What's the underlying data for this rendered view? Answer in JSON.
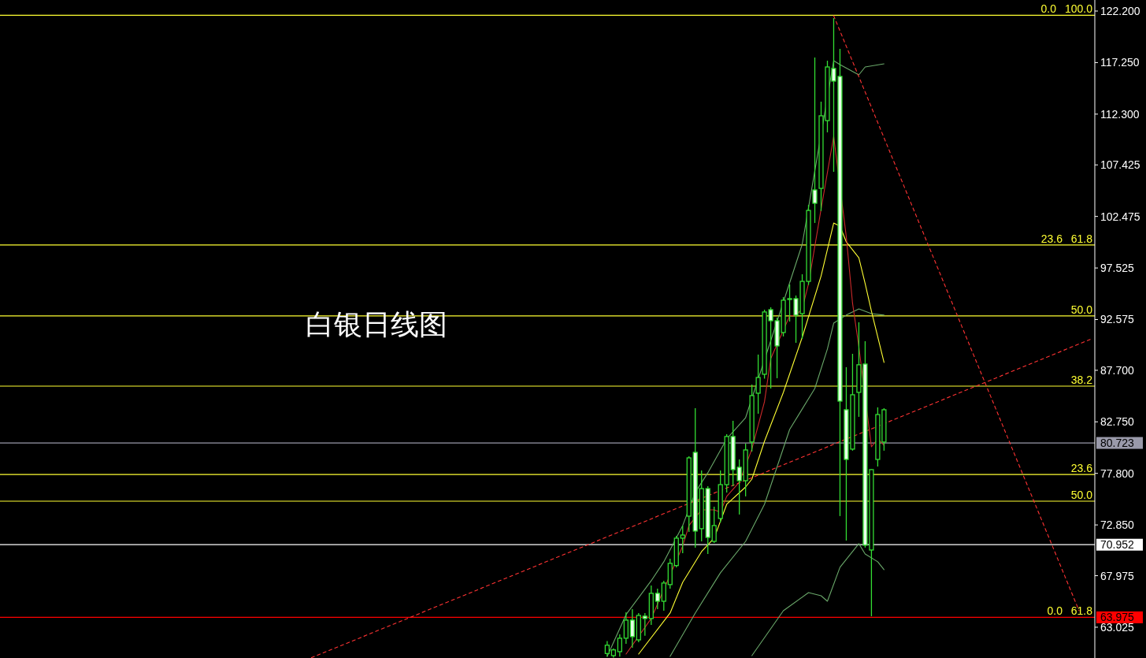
{
  "chart_data": {
    "type": "candlestick",
    "title": "白银日线图",
    "categories": [
      null,
      null,
      null,
      null,
      null,
      null,
      null,
      null,
      null,
      null,
      null,
      null,
      null,
      null,
      null,
      null,
      null,
      null,
      null,
      null,
      null,
      null,
      null,
      null,
      null,
      null,
      null,
      null,
      null,
      null,
      null,
      null,
      null,
      null,
      null,
      null,
      null,
      null,
      null,
      null,
      null,
      null,
      null,
      null,
      null,
      null,
      null,
      null,
      null,
      null,
      null,
      null,
      null,
      null,
      null,
      null,
      null,
      null,
      null,
      null,
      null,
      null,
      null,
      null,
      null,
      null,
      null,
      null,
      null,
      null,
      null,
      null,
      null,
      null,
      null,
      null,
      null,
      null,
      null,
      null,
      null,
      null,
      null,
      null,
      null,
      null,
      null,
      null,
      null,
      null,
      null,
      null,
      null,
      null,
      null,
      null,
      null,
      null,
      null,
      null,
      null,
      null,
      null,
      null,
      null,
      null,
      null,
      null,
      null,
      null,
      null,
      null,
      null,
      null,
      null,
      null,
      null,
      null,
      null,
      null,
      null,
      null,
      null,
      null,
      null,
      null,
      null,
      null,
      null,
      null,
      null,
      null,
      null,
      null,
      null,
      null,
      null,
      null,
      null,
      null,
      null,
      null,
      null,
      null,
      null,
      null,
      null,
      null,
      null,
      null,
      null,
      null,
      null,
      null,
      null,
      null,
      null,
      null,
      null,
      null,
      null,
      null,
      null,
      null,
      null,
      null,
      null,
      null,
      null,
      null,
      null,
      null,
      null,
      null
    ],
    "ohlc": [
      null,
      null,
      null,
      null,
      null,
      null,
      null,
      null,
      null,
      null,
      null,
      null,
      null,
      null,
      null,
      null,
      null,
      null,
      null,
      null,
      null,
      null,
      null,
      null,
      null,
      null,
      null,
      null,
      null,
      null,
      null,
      null,
      null,
      null,
      null,
      null,
      null,
      null,
      null,
      null,
      null,
      null,
      null,
      null,
      null,
      null,
      null,
      null,
      null,
      null,
      null,
      null,
      null,
      null,
      null,
      null,
      null,
      null,
      null,
      null,
      null,
      null,
      null,
      null,
      null,
      null,
      null,
      null,
      null,
      null,
      null,
      null,
      null,
      null,
      null,
      null,
      null,
      null,
      null,
      null,
      null,
      null,
      null,
      null,
      null,
      null,
      null,
      null,
      null,
      null,
      null,
      null,
      null,
      null,
      null,
      null,
      [
        60.5,
        61.7,
        60.2,
        61.3
      ],
      [
        60.3,
        61.0,
        60.1,
        60.85
      ],
      [
        60.68,
        62.34,
        60.2,
        61.97
      ],
      [
        61.97,
        64.45,
        61.44,
        63.71
      ],
      [
        63.71,
        64.76,
        61.06,
        62.12
      ],
      [
        61.81,
        64.39,
        61.59,
        64.16
      ],
      [
        64.09,
        64.39,
        62.2,
        63.86
      ],
      [
        63.86,
        67.04,
        63.25,
        66.28
      ],
      [
        66.28,
        66.73,
        64.76,
        65.52
      ],
      [
        65.52,
        67.49,
        64.61,
        67.27
      ],
      [
        67.12,
        69.61,
        66.73,
        69.16
      ],
      [
        68.95,
        71.8,
        68.78,
        71.58
      ],
      [
        71.58,
        72.79,
        70.14,
        71.88
      ],
      [
        73.69,
        79.45,
        72.18,
        79.29
      ],
      [
        79.82,
        84.06,
        70.67,
        72.26
      ],
      [
        72.49,
        78.08,
        71.27,
        76.34
      ],
      [
        76.34,
        76.57,
        70.06,
        71.65
      ],
      [
        71.27,
        74.6,
        71.12,
        72.79
      ],
      [
        73.47,
        78.08,
        73.09,
        76.72
      ],
      [
        76.72,
        81.56,
        75.96,
        81.34
      ],
      [
        81.34,
        82.85,
        76.57,
        78.16
      ],
      [
        78.39,
        79.14,
        73.85,
        77.1
      ],
      [
        77.1,
        80.66,
        75.59,
        80.05
      ],
      [
        80.81,
        86.33,
        79.9,
        85.27
      ],
      [
        85.5,
        89.21,
        83.53,
        87.01
      ],
      [
        87.32,
        93.52,
        86.9,
        93.3
      ],
      [
        93.52,
        93.75,
        85.95,
        92.46
      ],
      [
        92.46,
        92.76,
        86.94,
        90.04
      ],
      [
        91.33,
        94.73,
        90.95,
        94.43
      ],
      [
        94.5,
        95.94,
        92.38,
        94.58
      ],
      [
        94.58,
        94.88,
        90.34,
        92.99
      ],
      [
        93.14,
        96.92,
        90.72,
        96.24
      ],
      [
        96.24,
        103.59,
        95.9,
        103.05
      ],
      [
        105.02,
        117.74,
        101.85,
        103.74
      ],
      [
        105.17,
        113.5,
        103.0,
        112.14
      ],
      [
        111.68,
        117.43,
        110.55,
        116.83
      ],
      [
        116.68,
        121.52,
        106.76,
        115.47
      ],
      [
        115.92,
        118.57,
        73.7,
        84.74
      ],
      [
        83.91,
        88.0,
        71.35,
        79.14
      ],
      [
        80.13,
        89.28,
        79.98,
        85.35
      ],
      [
        85.58,
        92.31,
        83.23,
        88.23
      ],
      [
        88.3,
        90.49,
        70.67,
        70.9
      ],
      [
        70.44,
        78.2,
        64.08,
        78.16
      ],
      [
        79.14,
        84.14,
        78.46,
        83.45
      ],
      [
        80.81,
        84.06,
        79.98,
        83.91
      ],
      null,
      null,
      null,
      null,
      null,
      null,
      null,
      null,
      null,
      null,
      null,
      null,
      null,
      null,
      null,
      null,
      null,
      null,
      null,
      null,
      null,
      null,
      null,
      null,
      null,
      null,
      null,
      null,
      null,
      null,
      null,
      null,
      null
    ],
    "ylim": [
      60.07,
      123.26
    ],
    "yticks": [
      {
        "value": 63.025,
        "label": "63.025"
      },
      {
        "value": 67.975,
        "label": "67.975"
      },
      {
        "value": 72.85,
        "label": "72.850"
      },
      {
        "value": 77.8,
        "label": "77.800"
      },
      {
        "value": 82.75,
        "label": "82.750"
      },
      {
        "value": 87.7,
        "label": "87.700"
      },
      {
        "value": 92.575,
        "label": "92.575"
      },
      {
        "value": 97.525,
        "label": "97.525"
      },
      {
        "value": 102.475,
        "label": "102.475"
      },
      {
        "value": 107.425,
        "label": "107.425"
      },
      {
        "value": 112.3,
        "label": "112.300"
      },
      {
        "value": 117.25,
        "label": "117.250"
      },
      {
        "value": 122.2,
        "label": "122.200"
      }
    ],
    "series": [
      {
        "type": "line",
        "color": "#6aa86a",
        "values": [
          null,
          null,
          null,
          null,
          null,
          null,
          null,
          null,
          null,
          null,
          null,
          null,
          null,
          null,
          null,
          null,
          null,
          null,
          null,
          null,
          null,
          null,
          null,
          null,
          null,
          null,
          null,
          null,
          null,
          null,
          null,
          null,
          null,
          null,
          null,
          null,
          null,
          null,
          null,
          null,
          null,
          null,
          null,
          null,
          null,
          null,
          null,
          null,
          null,
          null,
          null,
          null,
          null,
          null,
          null,
          null,
          null,
          null,
          null,
          null,
          null,
          null,
          null,
          null,
          null,
          null,
          null,
          null,
          null,
          null,
          null,
          null,
          null,
          null,
          null,
          null,
          null,
          null,
          null,
          null,
          null,
          null,
          null,
          null,
          null,
          null,
          null,
          null,
          null,
          null,
          null,
          null,
          null,
          null,
          null,
          null,
          60.22,
          null,
          null,
          64.24,
          null,
          null,
          null,
          67.49,
          null,
          69.31,
          null,
          null,
          72.79,
          null,
          75.97,
          null,
          77.86,
          null,
          null,
          81.11,
          null,
          null,
          83.15,
          null,
          null,
          null,
          null,
          null,
          null,
          null,
          null,
          99.8,
          null,
          null,
          null,
          null,
          117.43,
          117.05,
          null,
          null,
          116.07,
          116.83,
          null,
          null,
          117.13,
          null,
          null,
          null,
          null,
          null,
          null,
          null,
          null,
          null,
          null,
          null,
          null,
          null,
          null,
          null,
          null,
          null,
          null,
          null,
          null,
          null,
          null,
          null,
          null,
          null,
          null,
          null,
          null,
          null,
          null,
          null,
          null,
          null
        ]
      },
      {
        "type": "line",
        "color": "#6aa86a",
        "values": [
          null,
          null,
          null,
          null,
          null,
          null,
          null,
          null,
          null,
          null,
          null,
          null,
          null,
          null,
          null,
          null,
          null,
          null,
          null,
          null,
          null,
          null,
          null,
          null,
          null,
          null,
          null,
          null,
          null,
          null,
          null,
          null,
          null,
          null,
          null,
          null,
          null,
          null,
          null,
          null,
          null,
          null,
          null,
          null,
          null,
          null,
          null,
          null,
          null,
          null,
          null,
          null,
          null,
          null,
          null,
          null,
          null,
          null,
          null,
          null,
          null,
          null,
          null,
          null,
          null,
          null,
          null,
          null,
          null,
          null,
          null,
          null,
          null,
          null,
          null,
          null,
          null,
          null,
          null,
          null,
          null,
          null,
          null,
          null,
          null,
          null,
          null,
          null,
          null,
          null,
          null,
          null,
          null,
          null,
          null,
          null,
          null,
          null,
          null,
          null,
          null,
          null,
          null,
          null,
          null,
          null,
          60.22,
          null,
          null,
          null,
          64.39,
          null,
          null,
          null,
          68.25,
          null,
          null,
          null,
          71.27,
          null,
          null,
          74.83,
          null,
          null,
          null,
          82.02,
          null,
          null,
          null,
          85.95,
          null,
          89.74,
          92.23,
          null,
          93.0,
          null,
          93.6,
          null,
          93.14,
          null,
          93.0,
          null,
          null,
          null,
          null,
          null,
          null,
          null,
          null,
          null,
          null,
          null,
          null,
          null,
          null,
          null,
          null,
          null,
          null,
          null,
          null,
          null,
          null,
          null,
          null,
          null,
          null,
          null,
          null,
          null,
          null,
          null,
          null,
          null
        ]
      },
      {
        "type": "line",
        "color": "#6aa86a",
        "values": [
          null,
          null,
          null,
          null,
          null,
          null,
          null,
          null,
          null,
          null,
          null,
          null,
          null,
          null,
          null,
          null,
          null,
          null,
          null,
          null,
          null,
          null,
          null,
          null,
          null,
          null,
          null,
          null,
          null,
          null,
          null,
          null,
          null,
          null,
          null,
          null,
          null,
          null,
          null,
          null,
          null,
          null,
          null,
          null,
          null,
          null,
          null,
          null,
          null,
          null,
          null,
          null,
          null,
          null,
          null,
          null,
          null,
          null,
          null,
          null,
          null,
          null,
          null,
          null,
          null,
          null,
          null,
          null,
          null,
          null,
          null,
          null,
          null,
          null,
          null,
          null,
          null,
          null,
          null,
          null,
          null,
          null,
          null,
          null,
          null,
          null,
          null,
          null,
          null,
          null,
          null,
          null,
          null,
          null,
          null,
          null,
          null,
          null,
          null,
          null,
          null,
          null,
          null,
          null,
          null,
          null,
          null,
          null,
          null,
          null,
          null,
          null,
          null,
          null,
          null,
          null,
          null,
          null,
          null,
          60.3,
          null,
          null,
          null,
          null,
          64.61,
          null,
          null,
          null,
          66.35,
          null,
          66.05,
          65.52,
          null,
          68.78,
          null,
          null,
          71.05,
          70.06,
          null,
          69.31,
          68.55,
          null,
          null,
          null,
          null,
          null,
          null,
          null,
          null,
          null,
          null,
          null,
          null,
          null,
          null,
          null,
          null,
          null,
          null,
          null,
          null,
          null,
          null,
          null,
          null,
          null,
          null,
          null,
          null,
          null,
          null,
          null,
          null,
          null
        ]
      },
      {
        "type": "line",
        "color": "#ffff33",
        "values": [
          null,
          null,
          null,
          null,
          null,
          null,
          null,
          null,
          null,
          null,
          null,
          null,
          null,
          null,
          null,
          null,
          null,
          null,
          null,
          null,
          null,
          null,
          null,
          null,
          null,
          null,
          null,
          null,
          null,
          null,
          null,
          null,
          null,
          null,
          null,
          null,
          null,
          null,
          null,
          null,
          null,
          null,
          null,
          null,
          null,
          null,
          null,
          null,
          null,
          null,
          null,
          null,
          null,
          null,
          null,
          null,
          null,
          null,
          null,
          null,
          null,
          null,
          null,
          null,
          null,
          null,
          null,
          null,
          null,
          null,
          null,
          null,
          null,
          null,
          null,
          null,
          null,
          null,
          null,
          null,
          null,
          null,
          null,
          null,
          null,
          null,
          null,
          null,
          null,
          null,
          null,
          null,
          null,
          null,
          null,
          null,
          null,
          null,
          null,
          null,
          null,
          60.45,
          null,
          null,
          null,
          null,
          64.39,
          null,
          67.34,
          null,
          null,
          70.29,
          null,
          71.58,
          null,
          74.83,
          null,
          null,
          76.49,
          77.25,
          null,
          80.88,
          null,
          null,
          85.57,
          null,
          null,
          90.87,
          null,
          null,
          96.77,
          null,
          101.84,
          101.54,
          100.03,
          null,
          98.51,
          96.02,
          93.37,
          null,
          88.45,
          null,
          null,
          null,
          null,
          null,
          null,
          null,
          null,
          null,
          null,
          null,
          null,
          null,
          null,
          null,
          null,
          null,
          null,
          null,
          null,
          null,
          null,
          null,
          null,
          null,
          null,
          null,
          null,
          null,
          null,
          null,
          null,
          null
        ]
      },
      {
        "type": "line",
        "color": "#cc2a2a",
        "values": [
          null,
          null,
          null,
          null,
          null,
          null,
          null,
          null,
          null,
          null,
          null,
          null,
          null,
          null,
          null,
          null,
          null,
          null,
          null,
          null,
          null,
          null,
          null,
          null,
          null,
          null,
          null,
          null,
          null,
          null,
          null,
          null,
          null,
          null,
          null,
          null,
          null,
          null,
          null,
          null,
          null,
          null,
          null,
          null,
          null,
          null,
          null,
          null,
          null,
          null,
          null,
          null,
          null,
          null,
          null,
          null,
          null,
          null,
          null,
          null,
          null,
          null,
          null,
          null,
          null,
          null,
          null,
          null,
          null,
          null,
          null,
          null,
          null,
          null,
          null,
          null,
          null,
          null,
          null,
          null,
          null,
          null,
          null,
          null,
          null,
          null,
          null,
          null,
          null,
          null,
          null,
          null,
          null,
          null,
          null,
          null,
          null,
          null,
          null,
          60.45,
          null,
          null,
          null,
          63.86,
          null,
          null,
          null,
          null,
          70.82,
          72.79,
          null,
          74.3,
          null,
          74.3,
          74.07,
          75.59,
          null,
          76.95,
          null,
          80.13,
          null,
          84.67,
          88.83,
          null,
          null,
          92.91,
          93.0,
          93.6,
          96.0,
          null,
          103.2,
          null,
          110.17,
          null,
          100.56,
          94.13,
          89.96,
          null,
          80.35,
          81.11,
          80.5,
          null,
          null,
          null,
          null,
          null,
          null,
          null,
          null,
          null,
          null,
          null,
          null,
          null,
          null,
          null,
          null,
          null,
          null,
          null,
          null,
          null,
          null,
          null,
          null,
          null,
          null,
          null,
          null,
          null,
          null,
          null,
          null,
          null
        ]
      },
      {
        "type": "line",
        "color": "#ff3333",
        "line_style": "dashed",
        "values": [
          null,
          null,
          null,
          null,
          null,
          null,
          null,
          null,
          null,
          null,
          null,
          null,
          null,
          null,
          null,
          null,
          null,
          null,
          null,
          null,
          null,
          null,
          null,
          null,
          null,
          null,
          null,
          null,
          null,
          null,
          null,
          null,
          null,
          null,
          null,
          null,
          null,
          null,
          null,
          null,
          null,
          null,
          null,
          null,
          null,
          null,
          null,
          null,
          null,
          60.1,
          null,
          null,
          null,
          null,
          null,
          null,
          null,
          null,
          null,
          null,
          null,
          null,
          null,
          null,
          null,
          null,
          null,
          null,
          null,
          null,
          null,
          null,
          null,
          null,
          null,
          null,
          null,
          null,
          null,
          null,
          null,
          null,
          null,
          null,
          null,
          null,
          null,
          null,
          null,
          null,
          null,
          null,
          null,
          null,
          null,
          null,
          null,
          null,
          null,
          null,
          null,
          null,
          null,
          null,
          null,
          null,
          null,
          null,
          null,
          null,
          null,
          null,
          null,
          null,
          null,
          null,
          null,
          null,
          null,
          null,
          null,
          null,
          null,
          null,
          null,
          null,
          null,
          null,
          null,
          null,
          null,
          null,
          null,
          null,
          null,
          null,
          null,
          null,
          null,
          null,
          null,
          null,
          null,
          null,
          null,
          null,
          null,
          null,
          null,
          null,
          null,
          null,
          null,
          null,
          null,
          null,
          null,
          null,
          null,
          null,
          null,
          null,
          null,
          null,
          null,
          null,
          null,
          null,
          null,
          null,
          null,
          null,
          null,
          90.72
        ]
      },
      {
        "type": "line",
        "color": "#ff3333",
        "line_style": "dashed",
        "values": [
          null,
          null,
          null,
          null,
          null,
          null,
          null,
          null,
          null,
          null,
          null,
          null,
          null,
          null,
          null,
          null,
          null,
          null,
          null,
          null,
          null,
          null,
          null,
          null,
          null,
          null,
          null,
          null,
          null,
          null,
          null,
          null,
          null,
          null,
          null,
          null,
          null,
          null,
          null,
          null,
          null,
          null,
          null,
          null,
          null,
          null,
          null,
          null,
          null,
          null,
          null,
          null,
          null,
          null,
          null,
          null,
          null,
          null,
          null,
          null,
          null,
          null,
          null,
          null,
          null,
          null,
          null,
          null,
          null,
          null,
          null,
          null,
          null,
          null,
          null,
          null,
          null,
          null,
          null,
          null,
          null,
          null,
          null,
          null,
          null,
          null,
          null,
          null,
          null,
          null,
          null,
          null,
          null,
          null,
          null,
          null,
          null,
          null,
          null,
          null,
          null,
          null,
          null,
          null,
          null,
          null,
          null,
          null,
          null,
          null,
          null,
          null,
          null,
          null,
          null,
          null,
          null,
          null,
          null,
          null,
          null,
          null,
          null,
          null,
          null,
          null,
          null,
          null,
          null,
          null,
          null,
          null,
          121.75,
          null,
          null,
          null,
          null,
          null,
          null,
          null,
          null,
          null,
          null,
          null,
          null,
          null,
          null,
          null,
          null,
          null,
          null,
          null,
          null,
          null,
          null,
          null,
          null,
          null,
          null,
          null,
          null,
          null,
          null,
          null,
          null,
          null,
          null,
          null,
          null,
          null,
          null,
          64.61,
          null,
          null
        ]
      }
    ],
    "ref_lines": [
      {
        "axis": "y",
        "value": 121.8,
        "color": "#ffff33"
      },
      {
        "axis": "y",
        "value": 99.73,
        "color": "#ffff33"
      },
      {
        "axis": "y",
        "value": 92.92,
        "color": "#ffff33"
      },
      {
        "axis": "y",
        "value": 86.18,
        "color": "#ffff33"
      },
      {
        "axis": "y",
        "value": 80.723,
        "label": "80.723",
        "color": "#9a9aaa"
      },
      {
        "axis": "y",
        "value": 77.7,
        "color": "#ffff33"
      },
      {
        "axis": "y",
        "value": 75.13,
        "color": "#ffff33"
      },
      {
        "axis": "y",
        "value": 70.952,
        "label": "70.952",
        "color": "#ffffff"
      },
      {
        "axis": "y",
        "value": 63.975,
        "label": "63.975",
        "color": "#ff0000"
      }
    ],
    "annotations": [
      {
        "text": "100.0",
        "y": 121.8
      },
      {
        "text": "0.0",
        "y": 121.8
      },
      {
        "text": "61.8",
        "y": 99.73
      },
      {
        "text": "23.6",
        "y": 99.73
      },
      {
        "text": "50.0",
        "y": 92.92
      },
      {
        "text": "38.2",
        "y": 86.18
      },
      {
        "text": "23.6",
        "y": 77.7
      },
      {
        "text": "50.0",
        "y": 75.13
      },
      {
        "text": "61.8",
        "y": 63.975
      },
      {
        "text": "0.0",
        "y": 63.975
      }
    ]
  }
}
